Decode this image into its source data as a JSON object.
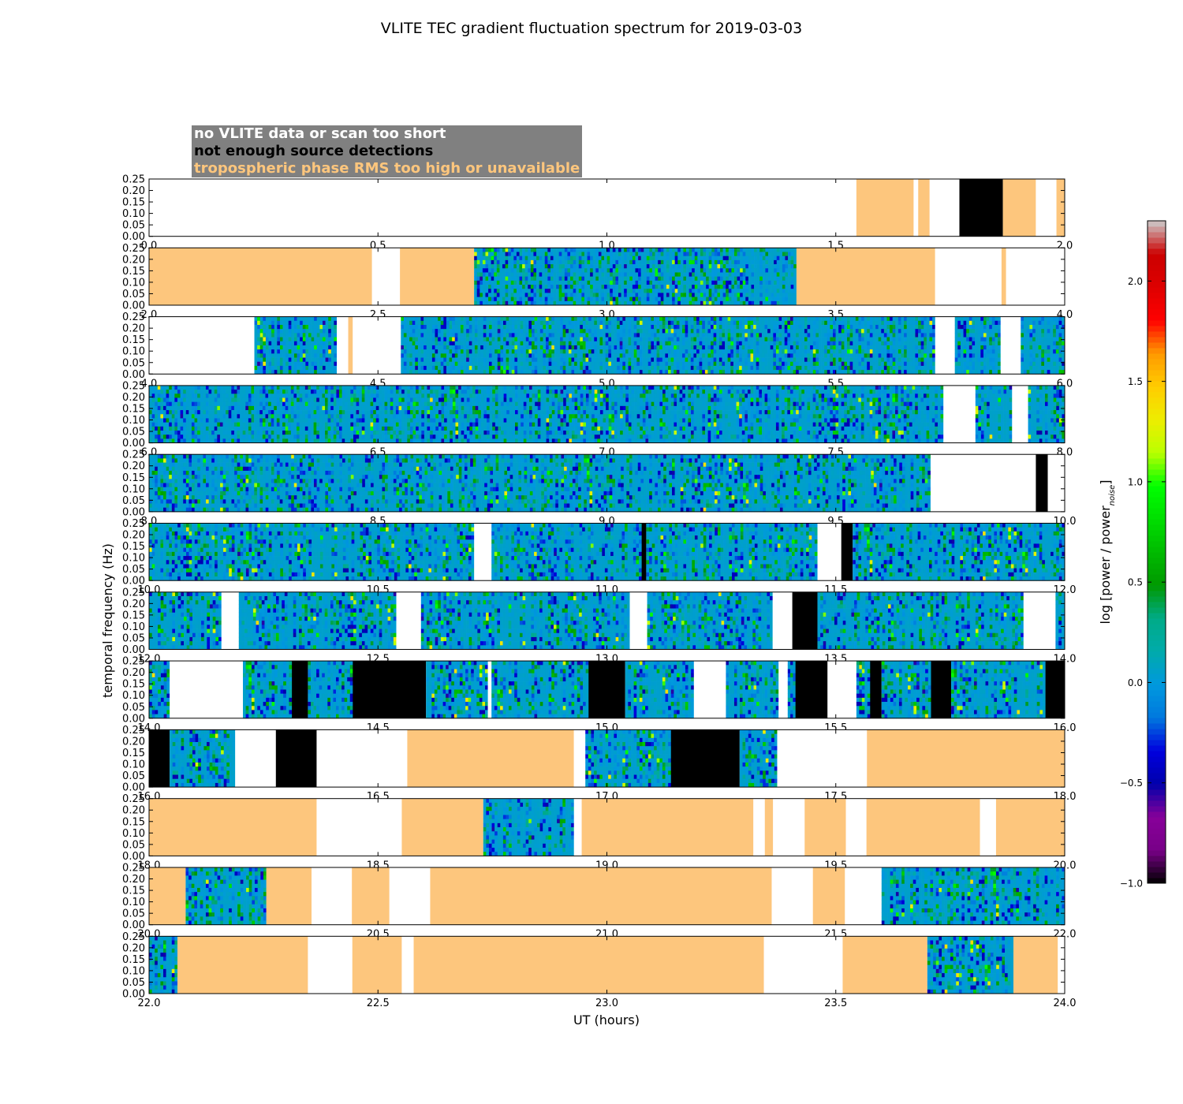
{
  "chart_data": {
    "type": "heatmap",
    "title": "VLITE TEC gradient fluctuation spectrum for 2019-03-03",
    "xlabel": "UT (hours)",
    "ylabel": "temporal frequency (Hz)",
    "colorbar_label_main": "log [power / power",
    "colorbar_label_sub": "noise",
    "colorbar_label_end": "]",
    "colorbar_ticks": [
      "2.0",
      "1.5",
      "1.0",
      "0.5",
      "0.0",
      "−0.5",
      "−1.0"
    ],
    "colorbar_values": [
      2.0,
      1.5,
      1.0,
      0.5,
      0.0,
      -0.5,
      -1.0
    ],
    "colorbar_range": [
      -1.0,
      2.3
    ],
    "colormap": "nipy_spectral",
    "ylim": [
      0,
      0.25
    ],
    "y_ticks": [
      "0.25",
      "0.20",
      "0.15",
      "0.10",
      "0.05",
      "0.00"
    ],
    "y_tick_values": [
      0.25,
      0.2,
      0.15,
      0.1,
      0.05,
      0.0
    ],
    "legend": [
      {
        "label": "no VLITE data or scan too short",
        "color": "#ffffff"
      },
      {
        "label": "not enough source detections",
        "color": "#000000"
      },
      {
        "label": "tropospheric phase RMS too high or unavailable",
        "color": "#fdc67d"
      }
    ],
    "legend_box_color": "#808080",
    "category_colors": {
      "none": "#ffffff",
      "black": "#000000",
      "orange": "#fdc67d"
    },
    "panels": [
      {
        "xlim": [
          0.0,
          2.0
        ],
        "x_ticks": [
          "0.0",
          "0.5",
          "1.0",
          "1.5",
          "2.0"
        ],
        "segments": [
          [
            "none",
            0.0,
            1.545
          ],
          [
            "orange",
            1.545,
            1.67
          ],
          [
            "none",
            1.67,
            1.68
          ],
          [
            "orange",
            1.68,
            1.705
          ],
          [
            "none",
            1.705,
            1.77
          ],
          [
            "black",
            1.77,
            1.865
          ],
          [
            "orange",
            1.865,
            1.937
          ],
          [
            "none",
            1.937,
            1.982
          ],
          [
            "orange",
            1.982,
            2.0
          ]
        ]
      },
      {
        "xlim": [
          2.0,
          4.0
        ],
        "x_ticks": [
          "2.0",
          "2.5",
          "3.0",
          "3.5",
          "4.0"
        ],
        "segments": [
          [
            "orange",
            2.0,
            2.487
          ],
          [
            "none",
            2.487,
            2.548
          ],
          [
            "orange",
            2.548,
            2.71
          ],
          [
            "data",
            2.71,
            3.414
          ],
          [
            "orange",
            3.414,
            3.717
          ],
          [
            "none",
            3.717,
            3.862
          ],
          [
            "orange",
            3.862,
            3.872
          ],
          [
            "none",
            3.872,
            4.0
          ]
        ]
      },
      {
        "xlim": [
          4.0,
          6.0
        ],
        "x_ticks": [
          "4.0",
          "4.5",
          "5.0",
          "5.5",
          "6.0"
        ],
        "segments": [
          [
            "none",
            4.0,
            4.23
          ],
          [
            "data",
            4.23,
            4.41
          ],
          [
            "none",
            4.41,
            4.435
          ],
          [
            "orange",
            4.435,
            4.445
          ],
          [
            "none",
            4.445,
            4.55
          ],
          [
            "data",
            4.55,
            5.717
          ],
          [
            "none",
            5.717,
            5.76
          ],
          [
            "data",
            5.76,
            5.86
          ],
          [
            "none",
            5.86,
            5.904
          ],
          [
            "data",
            5.904,
            6.0
          ]
        ]
      },
      {
        "xlim": [
          6.0,
          8.0
        ],
        "x_ticks": [
          "6.0",
          "6.5",
          "7.0",
          "7.5",
          "8.0"
        ],
        "segments": [
          [
            "data",
            6.0,
            7.735
          ],
          [
            "none",
            7.735,
            7.805
          ],
          [
            "data",
            7.805,
            7.885
          ],
          [
            "none",
            7.885,
            7.92
          ],
          [
            "data",
            7.92,
            8.0
          ]
        ]
      },
      {
        "xlim": [
          8.0,
          10.0
        ],
        "x_ticks": [
          "8.0",
          "8.5",
          "9.0",
          "9.5",
          "10.0"
        ],
        "segments": [
          [
            "data",
            8.0,
            9.707
          ],
          [
            "none",
            9.707,
            9.937
          ],
          [
            "black",
            9.937,
            9.963
          ],
          [
            "none",
            9.963,
            10.0
          ]
        ]
      },
      {
        "xlim": [
          10.0,
          12.0
        ],
        "x_ticks": [
          "10.0",
          "10.5",
          "11.0",
          "11.5",
          "12.0"
        ],
        "segments": [
          [
            "data",
            10.0,
            10.71
          ],
          [
            "none",
            10.71,
            10.748
          ],
          [
            "data",
            10.748,
            11.076
          ],
          [
            "black",
            11.076,
            11.086
          ],
          [
            "data",
            11.086,
            11.46
          ],
          [
            "none",
            11.46,
            11.512
          ],
          [
            "black",
            11.512,
            11.537
          ],
          [
            "data",
            11.537,
            12.0
          ]
        ]
      },
      {
        "xlim": [
          12.0,
          14.0
        ],
        "x_ticks": [
          "12.0",
          "12.5",
          "13.0",
          "13.5",
          "14.0"
        ],
        "segments": [
          [
            "data",
            12.0,
            12.158
          ],
          [
            "none",
            12.158,
            12.196
          ],
          [
            "data",
            12.196,
            12.54
          ],
          [
            "none",
            12.54,
            12.594
          ],
          [
            "data",
            12.594,
            13.05
          ],
          [
            "none",
            13.05,
            13.088
          ],
          [
            "data",
            13.088,
            13.362
          ],
          [
            "none",
            13.362,
            13.405
          ],
          [
            "black",
            13.405,
            13.46
          ],
          [
            "data",
            13.46,
            13.91
          ],
          [
            "none",
            13.91,
            13.98
          ],
          [
            "data",
            13.98,
            14.0
          ]
        ]
      },
      {
        "xlim": [
          14.0,
          16.0
        ],
        "x_ticks": [
          "14.0",
          "14.5",
          "15.0",
          "15.5",
          "16.0"
        ],
        "segments": [
          [
            "data",
            14.0,
            14.045
          ],
          [
            "none",
            14.045,
            14.205
          ],
          [
            "data",
            14.205,
            14.312
          ],
          [
            "black",
            14.312,
            14.347
          ],
          [
            "data",
            14.347,
            14.445
          ],
          [
            "black",
            14.445,
            14.605
          ],
          [
            "data",
            14.605,
            14.74
          ],
          [
            "none",
            14.74,
            14.748
          ],
          [
            "data",
            14.748,
            14.96
          ],
          [
            "black",
            14.96,
            15.04
          ],
          [
            "data",
            15.04,
            15.19
          ],
          [
            "none",
            15.19,
            15.26
          ],
          [
            "data",
            15.26,
            15.375
          ],
          [
            "none",
            15.375,
            15.395
          ],
          [
            "data",
            15.395,
            15.412
          ],
          [
            "black",
            15.412,
            15.482
          ],
          [
            "none",
            15.482,
            15.545
          ],
          [
            "data",
            15.545,
            15.575
          ],
          [
            "black",
            15.575,
            15.6
          ],
          [
            "data",
            15.6,
            15.708
          ],
          [
            "black",
            15.708,
            15.752
          ],
          [
            "data",
            15.752,
            15.958
          ],
          [
            "black",
            15.958,
            16.0
          ]
        ]
      },
      {
        "xlim": [
          16.0,
          18.0
        ],
        "x_ticks": [
          "16.0",
          "16.5",
          "17.0",
          "17.5",
          "18.0"
        ],
        "segments": [
          [
            "black",
            16.0,
            16.045
          ],
          [
            "data",
            16.045,
            16.188
          ],
          [
            "none",
            16.188,
            16.277
          ],
          [
            "black",
            16.277,
            16.366
          ],
          [
            "none",
            16.366,
            16.564
          ],
          [
            "orange",
            16.564,
            16.928
          ],
          [
            "none",
            16.928,
            16.953
          ],
          [
            "data",
            16.953,
            17.14
          ],
          [
            "black",
            17.14,
            17.29
          ],
          [
            "data",
            17.29,
            17.372
          ],
          [
            "none",
            17.372,
            17.568
          ],
          [
            "orange",
            17.568,
            18.0
          ]
        ]
      },
      {
        "xlim": [
          18.0,
          20.0
        ],
        "x_ticks": [
          "18.0",
          "18.5",
          "19.0",
          "19.5",
          "20.0"
        ],
        "segments": [
          [
            "orange",
            18.0,
            18.366
          ],
          [
            "none",
            18.366,
            18.552
          ],
          [
            "orange",
            18.552,
            18.73
          ],
          [
            "data",
            18.73,
            18.928
          ],
          [
            "none",
            18.928,
            18.945
          ],
          [
            "orange",
            18.945,
            19.32
          ],
          [
            "none",
            19.32,
            19.345
          ],
          [
            "orange",
            19.345,
            19.363
          ],
          [
            "none",
            19.363,
            19.432
          ],
          [
            "orange",
            19.432,
            19.522
          ],
          [
            "none",
            19.522,
            19.567
          ],
          [
            "orange",
            19.567,
            19.815
          ],
          [
            "none",
            19.815,
            19.85
          ],
          [
            "orange",
            19.85,
            20.0
          ]
        ]
      },
      {
        "xlim": [
          20.0,
          22.0
        ],
        "x_ticks": [
          "20.0",
          "20.5",
          "21.0",
          "21.5",
          "22.0"
        ],
        "segments": [
          [
            "orange",
            20.0,
            20.08
          ],
          [
            "data",
            20.08,
            20.256
          ],
          [
            "orange",
            20.256,
            20.355
          ],
          [
            "none",
            20.355,
            20.443
          ],
          [
            "orange",
            20.443,
            20.525
          ],
          [
            "none",
            20.525,
            20.614
          ],
          [
            "orange",
            20.614,
            21.36
          ],
          [
            "none",
            21.36,
            21.45
          ],
          [
            "orange",
            21.45,
            21.52
          ],
          [
            "none",
            21.52,
            21.6
          ],
          [
            "data",
            21.6,
            22.0
          ]
        ]
      },
      {
        "xlim": [
          22.0,
          24.0
        ],
        "x_ticks": [
          "22.0",
          "22.5",
          "23.0",
          "23.5",
          "24.0"
        ],
        "segments": [
          [
            "data",
            22.0,
            22.062
          ],
          [
            "orange",
            22.062,
            22.347
          ],
          [
            "none",
            22.347,
            22.444
          ],
          [
            "orange",
            22.444,
            22.552
          ],
          [
            "none",
            22.552,
            22.578
          ],
          [
            "orange",
            22.578,
            23.343
          ],
          [
            "none",
            23.343,
            23.515
          ],
          [
            "orange",
            23.515,
            23.7
          ],
          [
            "data",
            23.7,
            23.888
          ],
          [
            "orange",
            23.888,
            23.985
          ],
          [
            "none",
            23.985,
            24.0
          ]
        ]
      }
    ]
  }
}
